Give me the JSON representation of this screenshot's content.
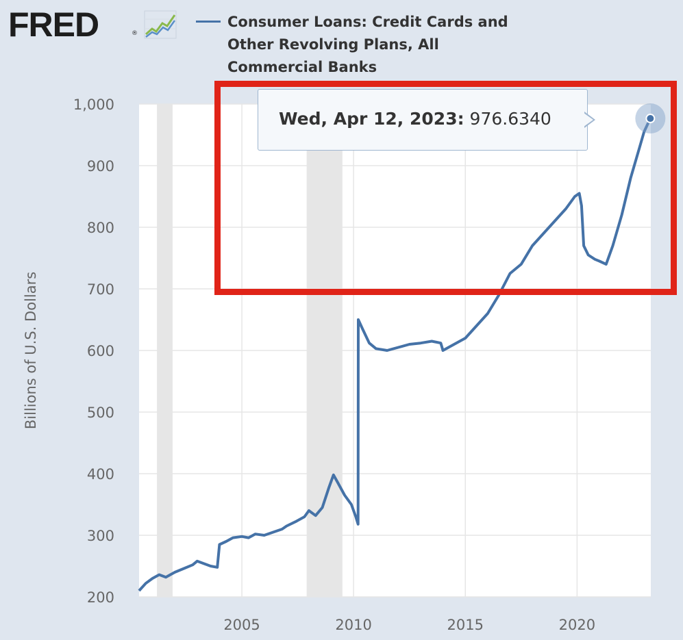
{
  "logo": {
    "text": "FRED",
    "reg": "®"
  },
  "legend": {
    "label": "Consumer Loans: Credit Cards and Other Revolving Plans, All Commercial Banks"
  },
  "tooltip": {
    "date": "Wed, Apr 12, 2023:",
    "value": "976.6340"
  },
  "colors": {
    "series": "#4572a7",
    "recession": "#e6e6e6",
    "highlight": "#e02418",
    "background": "#dfe6ef",
    "plot": "#ffffff"
  },
  "chart_data": {
    "type": "line",
    "title": "",
    "xlabel": "",
    "ylabel": "Billions of U.S. Dollars",
    "xlim": [
      2000.4,
      2023.3
    ],
    "ylim": [
      200,
      1000
    ],
    "yticks": [
      200,
      300,
      400,
      500,
      600,
      700,
      800,
      900,
      1000
    ],
    "ytick_labels": [
      "200",
      "300",
      "400",
      "500",
      "600",
      "700",
      "800",
      "900",
      "1,000"
    ],
    "xticks": [
      2005,
      2010,
      2015,
      2020
    ],
    "xtick_labels": [
      "2005",
      "2010",
      "2015",
      "2020"
    ],
    "grid": true,
    "recessions": [
      [
        2001.2,
        2001.9
      ],
      [
        2007.9,
        2009.5
      ]
    ],
    "series": [
      {
        "name": "Consumer Loans: Credit Cards and Other Revolving Plans, All Commercial Banks",
        "x": [
          2000.4,
          2000.7,
          2001.0,
          2001.3,
          2001.6,
          2002.0,
          2002.4,
          2002.8,
          2003.0,
          2003.3,
          2003.6,
          2003.9,
          2004.0,
          2004.3,
          2004.6,
          2005.0,
          2005.3,
          2005.6,
          2006.0,
          2006.4,
          2006.8,
          2007.0,
          2007.4,
          2007.8,
          2008.0,
          2008.3,
          2008.6,
          2008.9,
          2009.1,
          2009.3,
          2009.6,
          2009.9,
          2010.1,
          2010.2,
          2010.21,
          2010.4,
          2010.7,
          2011.0,
          2011.5,
          2012.0,
          2012.5,
          2013.0,
          2013.5,
          2013.9,
          2014.0,
          2014.5,
          2015.0,
          2015.5,
          2016.0,
          2016.5,
          2017.0,
          2017.5,
          2018.0,
          2018.5,
          2019.0,
          2019.5,
          2019.9,
          2020.1,
          2020.2,
          2020.3,
          2020.5,
          2020.8,
          2021.0,
          2021.3,
          2021.6,
          2022.0,
          2022.4,
          2022.8,
          2023.0,
          2023.28
        ],
        "y": [
          210,
          222,
          230,
          236,
          232,
          240,
          246,
          252,
          258,
          254,
          250,
          248,
          285,
          290,
          296,
          298,
          296,
          302,
          300,
          305,
          310,
          315,
          322,
          330,
          340,
          332,
          345,
          378,
          398,
          385,
          365,
          350,
          330,
          318,
          650,
          635,
          612,
          603,
          600,
          605,
          610,
          612,
          615,
          612,
          600,
          610,
          620,
          640,
          660,
          690,
          725,
          740,
          770,
          790,
          810,
          830,
          850,
          855,
          835,
          770,
          755,
          748,
          745,
          740,
          770,
          820,
          880,
          930,
          955,
          976.634
        ]
      }
    ]
  }
}
